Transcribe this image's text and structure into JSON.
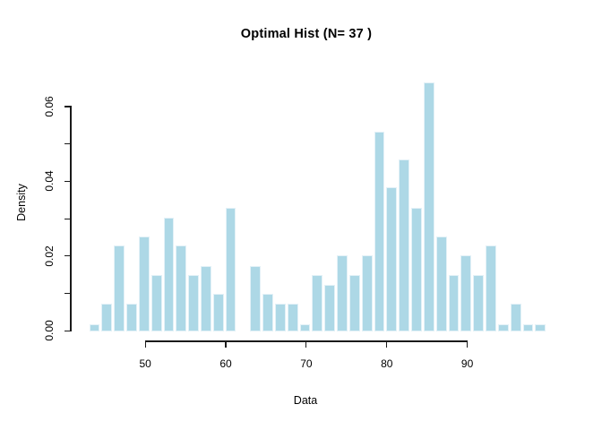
{
  "title": "Optimal Hist (N= 37 )",
  "x_axis": {
    "label": "Data",
    "ticks": [
      {
        "value": 50,
        "label": "50"
      },
      {
        "value": 60,
        "label": "60"
      },
      {
        "value": 70,
        "label": "70"
      },
      {
        "value": 80,
        "label": "80"
      },
      {
        "value": 90,
        "label": "90"
      }
    ]
  },
  "y_axis": {
    "label": "Density",
    "ticks": [
      {
        "value": 0.0,
        "label": "0.00"
      },
      {
        "value": 0.02,
        "label": "0.02"
      },
      {
        "value": 0.04,
        "label": "0.04"
      },
      {
        "value": 0.06,
        "label": "0.06"
      }
    ],
    "minor_ticks": [
      0.01,
      0.03,
      0.05
    ]
  },
  "colors": {
    "bar_fill": "#ADD8E6",
    "bar_border": "#E3F1F7",
    "axis": "#1A1A1A"
  },
  "chart_data": {
    "type": "bar",
    "subtype": "histogram",
    "title": "Optimal Hist (N= 37 )",
    "xlabel": "Data",
    "ylabel": "Density",
    "n_bins": 37,
    "bin_start": 42.95,
    "bin_width": 1.539,
    "densities": [
      0.002,
      0.0075,
      0.023,
      0.0075,
      0.0255,
      0.015,
      0.0305,
      0.023,
      0.015,
      0.0175,
      0.01,
      0.033,
      0,
      0.0175,
      0.01,
      0.0075,
      0.0075,
      0.002,
      0.015,
      0.0125,
      0.0205,
      0.015,
      0.0205,
      0.0535,
      0.0385,
      0.046,
      0.033,
      0.0667,
      0.0255,
      0.015,
      0.0205,
      0.015,
      0.023,
      0.002,
      0.0075,
      0.002,
      0.002
    ],
    "xlim": [
      50,
      90
    ],
    "ylim": [
      0,
      0.06
    ],
    "grid": false,
    "legend": null
  }
}
